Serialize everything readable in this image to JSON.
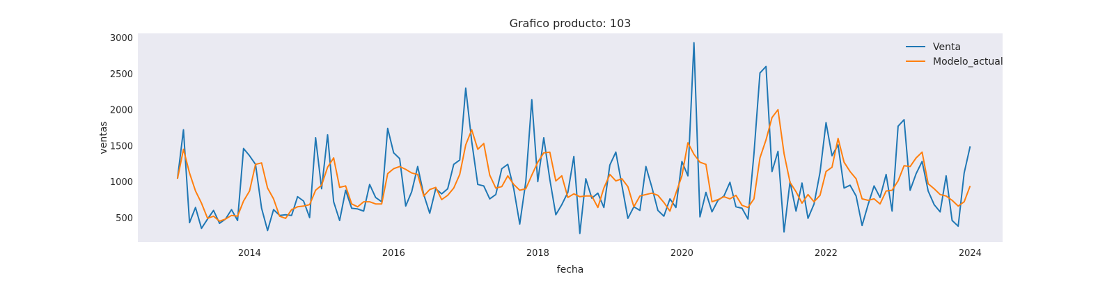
{
  "chart_data": {
    "type": "line",
    "title": "Grafico producto: 103",
    "xlabel": "fecha",
    "ylabel": "ventas",
    "xlim": [
      2012.45,
      2024.45
    ],
    "ylim": [
      160,
      3060
    ],
    "xticks": [
      2014,
      2016,
      2018,
      2020,
      2022,
      2024
    ],
    "xtick_labels": [
      "2014",
      "2016",
      "2018",
      "2020",
      "2022",
      "2024"
    ],
    "yticks": [
      500,
      1000,
      1500,
      2000,
      2500,
      3000
    ],
    "ytick_labels": [
      "500",
      "1000",
      "1500",
      "2000",
      "2500",
      "3000"
    ],
    "grid": false,
    "background": "#eaeaf2",
    "legend_position": "top-right",
    "x_start": 2013.0,
    "x_step_months": 1,
    "series": [
      {
        "name": "Venta",
        "color": "#1f77b4",
        "values": [
          1040,
          1720,
          430,
          640,
          350,
          480,
          600,
          420,
          480,
          610,
          460,
          1460,
          1360,
          1240,
          630,
          320,
          610,
          530,
          540,
          530,
          790,
          730,
          500,
          1610,
          900,
          1650,
          720,
          460,
          880,
          630,
          620,
          590,
          960,
          780,
          720,
          1740,
          1400,
          1320,
          660,
          860,
          1210,
          820,
          560,
          900,
          830,
          900,
          1240,
          1300,
          2300,
          1560,
          960,
          940,
          760,
          820,
          1180,
          1240,
          900,
          410,
          1000,
          2140,
          1000,
          1610,
          1030,
          540,
          680,
          850,
          1350,
          280,
          1040,
          770,
          840,
          640,
          1230,
          1410,
          950,
          490,
          650,
          600,
          1210,
          920,
          600,
          520,
          760,
          640,
          1280,
          1080,
          2930,
          510,
          850,
          580,
          740,
          800,
          990,
          650,
          630,
          480,
          1390,
          2510,
          2600,
          1140,
          1420,
          300,
          1000,
          590,
          980,
          490,
          690,
          1130,
          1820,
          1360,
          1510,
          910,
          950,
          800,
          390,
          680,
          940,
          780,
          1100,
          590,
          1770,
          1860,
          880,
          1110,
          1280,
          870,
          680,
          580,
          1080,
          460,
          380,
          1120,
          1490
        ]
      },
      {
        "name": "Modelo_actual",
        "color": "#ff7f0e",
        "values": [
          1040,
          1450,
          1120,
          870,
          700,
          490,
          520,
          450,
          480,
          530,
          520,
          730,
          870,
          1240,
          1260,
          910,
          760,
          520,
          490,
          610,
          650,
          660,
          680,
          880,
          950,
          1200,
          1330,
          920,
          940,
          690,
          650,
          720,
          720,
          690,
          690,
          1110,
          1180,
          1210,
          1170,
          1120,
          1100,
          800,
          890,
          920,
          750,
          810,
          910,
          1100,
          1510,
          1720,
          1450,
          1530,
          1090,
          910,
          930,
          1080,
          960,
          880,
          900,
          1090,
          1270,
          1400,
          1410,
          1010,
          1080,
          780,
          830,
          790,
          800,
          800,
          640,
          910,
          1100,
          1010,
          1040,
          930,
          650,
          800,
          820,
          840,
          810,
          710,
          590,
          840,
          1080,
          1540,
          1380,
          1270,
          1240,
          720,
          750,
          790,
          760,
          810,
          670,
          640,
          760,
          1330,
          1580,
          1890,
          2000,
          1390,
          990,
          860,
          700,
          820,
          720,
          810,
          1140,
          1200,
          1600,
          1270,
          1140,
          1040,
          760,
          740,
          760,
          690,
          870,
          880,
          1010,
          1220,
          1210,
          1330,
          1410,
          970,
          900,
          820,
          800,
          740,
          660,
          720,
          940
        ]
      }
    ]
  }
}
